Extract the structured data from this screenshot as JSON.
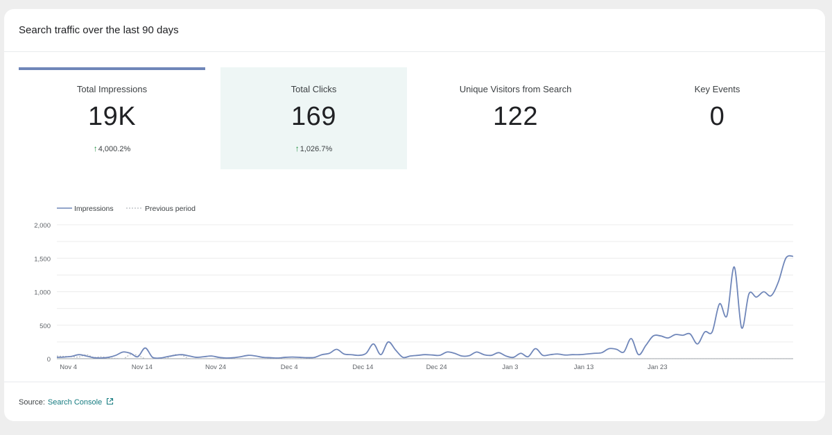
{
  "card": {
    "title": "Search traffic over the last 90 days"
  },
  "tiles": [
    {
      "label": "Total Impressions",
      "value": "19K",
      "change": "4,000.2%"
    },
    {
      "label": "Total Clicks",
      "value": "169",
      "change": "1,026.7%"
    },
    {
      "label": "Unique Visitors from Search",
      "value": "122",
      "change": ""
    },
    {
      "label": "Key Events",
      "value": "0",
      "change": ""
    }
  ],
  "footer": {
    "source_label": "Source:",
    "source_name": "Search Console",
    "icon": "external-link-icon"
  },
  "colors": {
    "impressions": "#6f86b9",
    "previous": "#b4b8bd",
    "accent_link": "#137a7f",
    "up": "#1e8e3e"
  },
  "chart_data": {
    "type": "line",
    "legend": [
      "Impressions",
      "Previous period"
    ],
    "legend_position": "top-left",
    "ylim": [
      0,
      2000
    ],
    "yticks": [
      "0",
      "500",
      "1,000",
      "1,500",
      "2,000"
    ],
    "ytick_values": [
      0,
      500,
      1000,
      1500,
      2000
    ],
    "xticks": [
      "Nov 4",
      "Nov 14",
      "Nov 24",
      "Dec 4",
      "Dec 14",
      "Dec 24",
      "Jan 3",
      "Jan 13",
      "Jan 23"
    ],
    "grid": true,
    "series": [
      {
        "name": "Impressions",
        "values": [
          20,
          25,
          35,
          60,
          40,
          15,
          10,
          20,
          50,
          100,
          80,
          30,
          160,
          20,
          10,
          30,
          50,
          60,
          40,
          20,
          30,
          40,
          20,
          10,
          15,
          30,
          50,
          40,
          20,
          15,
          10,
          20,
          25,
          20,
          15,
          20,
          60,
          80,
          140,
          70,
          60,
          50,
          80,
          220,
          60,
          250,
          130,
          20,
          40,
          50,
          60,
          55,
          50,
          100,
          80,
          40,
          45,
          100,
          60,
          50,
          90,
          40,
          20,
          80,
          30,
          150,
          50,
          60,
          70,
          55,
          60,
          60,
          70,
          80,
          90,
          150,
          140,
          100,
          300,
          60,
          200,
          340,
          340,
          310,
          360,
          350,
          370,
          220,
          400,
          400,
          820,
          640,
          1370,
          460,
          970,
          920,
          1000,
          940,
          1150,
          1500,
          1530
        ]
      },
      {
        "name": "Previous period",
        "values": [
          40,
          35,
          30,
          25,
          60,
          20,
          30,
          10,
          5,
          0,
          60,
          50,
          0,
          0,
          0,
          10,
          60,
          50,
          0,
          0,
          0,
          0,
          0,
          0,
          0,
          0,
          0,
          0,
          0,
          0,
          0,
          0,
          0,
          0,
          0,
          0,
          0,
          0,
          0,
          0,
          0,
          0,
          0,
          0,
          0,
          0,
          0,
          0,
          0,
          0,
          0,
          0,
          0,
          0,
          0,
          0,
          0,
          0,
          0,
          0,
          0,
          0,
          0,
          0,
          0,
          0,
          0,
          0,
          0,
          0,
          0,
          0,
          0,
          0,
          0,
          0,
          0,
          0,
          0,
          0,
          0,
          0,
          0,
          0,
          0,
          0,
          0,
          0,
          0,
          0,
          0,
          0,
          0,
          0,
          0,
          0,
          0,
          0,
          0,
          0,
          0
        ]
      }
    ]
  }
}
